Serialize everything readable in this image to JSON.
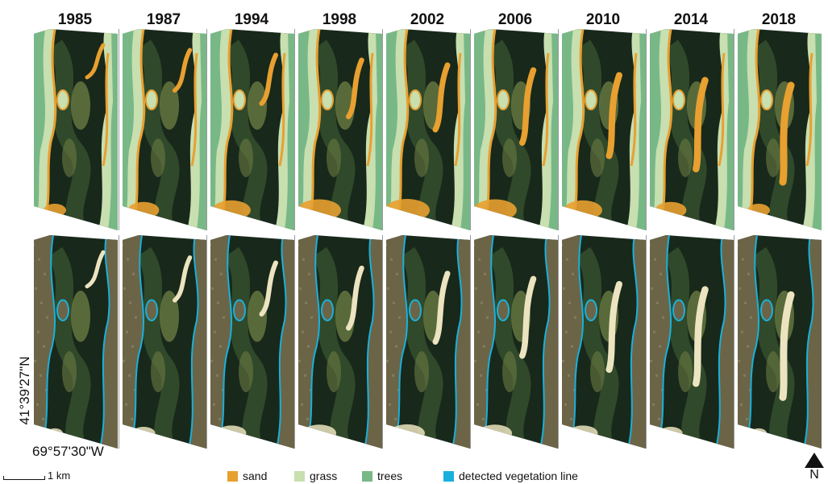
{
  "years": [
    "1985",
    "1987",
    "1994",
    "1998",
    "2002",
    "2006",
    "2010",
    "2014",
    "2018"
  ],
  "coordinates": {
    "latitude": "41°39'27\"N",
    "longitude": "69°57'30\"W"
  },
  "scale_bar": "1 km",
  "legend": [
    {
      "label": "sand",
      "color": "#e8a030"
    },
    {
      "label": "grass",
      "color": "#c8dfb0"
    },
    {
      "label": "trees",
      "color": "#78b886"
    },
    {
      "label": "detected vegetation line",
      "color": "#1ab0dc"
    }
  ],
  "north_arrow": "N",
  "colors": {
    "water_dark": "#18281a",
    "water_mid": "#30492a",
    "shoal": "#6a7a42",
    "imagery_land": "#6c6446",
    "imagery_sand": "#ece4c0"
  }
}
